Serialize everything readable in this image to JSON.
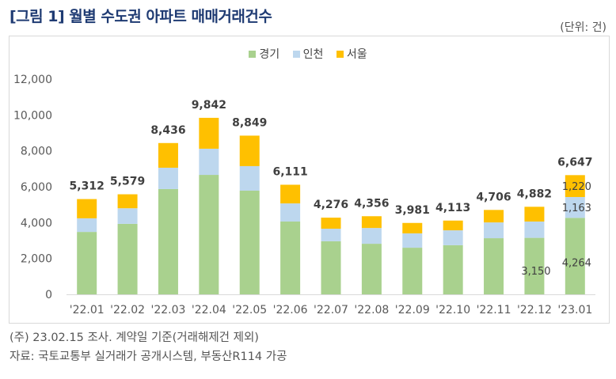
{
  "header": {
    "title": "[그림 1] 월별 수도권 아파트 매매거래건수",
    "unit": "(단위: 건)"
  },
  "notes": {
    "note": "(주) 23.02.15 조사. 계약일 기준(거래해제건 제외)",
    "source": "자료: 국토교통부 실거래가 공개시스템, 부동산R114 가공"
  },
  "colors": {
    "gyeonggi": "#a9d18e",
    "incheon": "#bdd7ee",
    "seoul": "#ffc000",
    "axis": "#d9d9d9",
    "text": "#404040"
  },
  "chart_data": {
    "type": "bar",
    "stacked": true,
    "title": "[그림 1] 월별 수도권 아파트 매매거래건수",
    "xlabel": "",
    "ylabel": "",
    "unit": "(단위: 건)",
    "ylim": [
      0,
      12000
    ],
    "yticks": [
      0,
      2000,
      4000,
      6000,
      8000,
      10000,
      12000
    ],
    "ytick_labels": [
      "0",
      "2,000",
      "4,000",
      "6,000",
      "8,000",
      "10,000",
      "12,000"
    ],
    "grid": false,
    "legend_position": "top-center",
    "categories": [
      "'22.01",
      "'22.02",
      "'22.03",
      "'22.04",
      "'22.05",
      "'22.06",
      "'22.07",
      "'22.08",
      "'22.09",
      "'22.10",
      "'22.11",
      "'22.12",
      "'23.01"
    ],
    "series": [
      {
        "name": "경기",
        "color": "#a9d18e",
        "values": [
          3480,
          3930,
          5870,
          6660,
          5780,
          4060,
          2960,
          2820,
          2600,
          2740,
          3130,
          3150,
          4264
        ]
      },
      {
        "name": "인천",
        "color": "#bdd7ee",
        "values": [
          760,
          870,
          1190,
          1460,
          1370,
          1010,
          700,
          880,
          800,
          830,
          880,
          910,
          1163
        ]
      },
      {
        "name": "서울",
        "color": "#ffc000",
        "values": [
          1072,
          779,
          1376,
          1722,
          1699,
          1041,
          616,
          656,
          581,
          543,
          696,
          822,
          1220
        ]
      }
    ],
    "totals": [
      5312,
      5579,
      8436,
      9842,
      8849,
      6111,
      4276,
      4356,
      3981,
      4113,
      4706,
      4882,
      6647
    ],
    "total_labels": [
      "5,312",
      "5,579",
      "8,436",
      "9,842",
      "8,849",
      "6,111",
      "4,276",
      "4,356",
      "3,981",
      "4,113",
      "4,706",
      "4,882",
      "6,647"
    ],
    "segment_labels": [
      {
        "category_index": 11,
        "series": "경기",
        "label": "3,150"
      },
      {
        "category_index": 12,
        "series": "경기",
        "label": "4,264"
      },
      {
        "category_index": 12,
        "series": "인천",
        "label": "1,163"
      },
      {
        "category_index": 12,
        "series": "서울",
        "label": "1,220"
      }
    ]
  }
}
